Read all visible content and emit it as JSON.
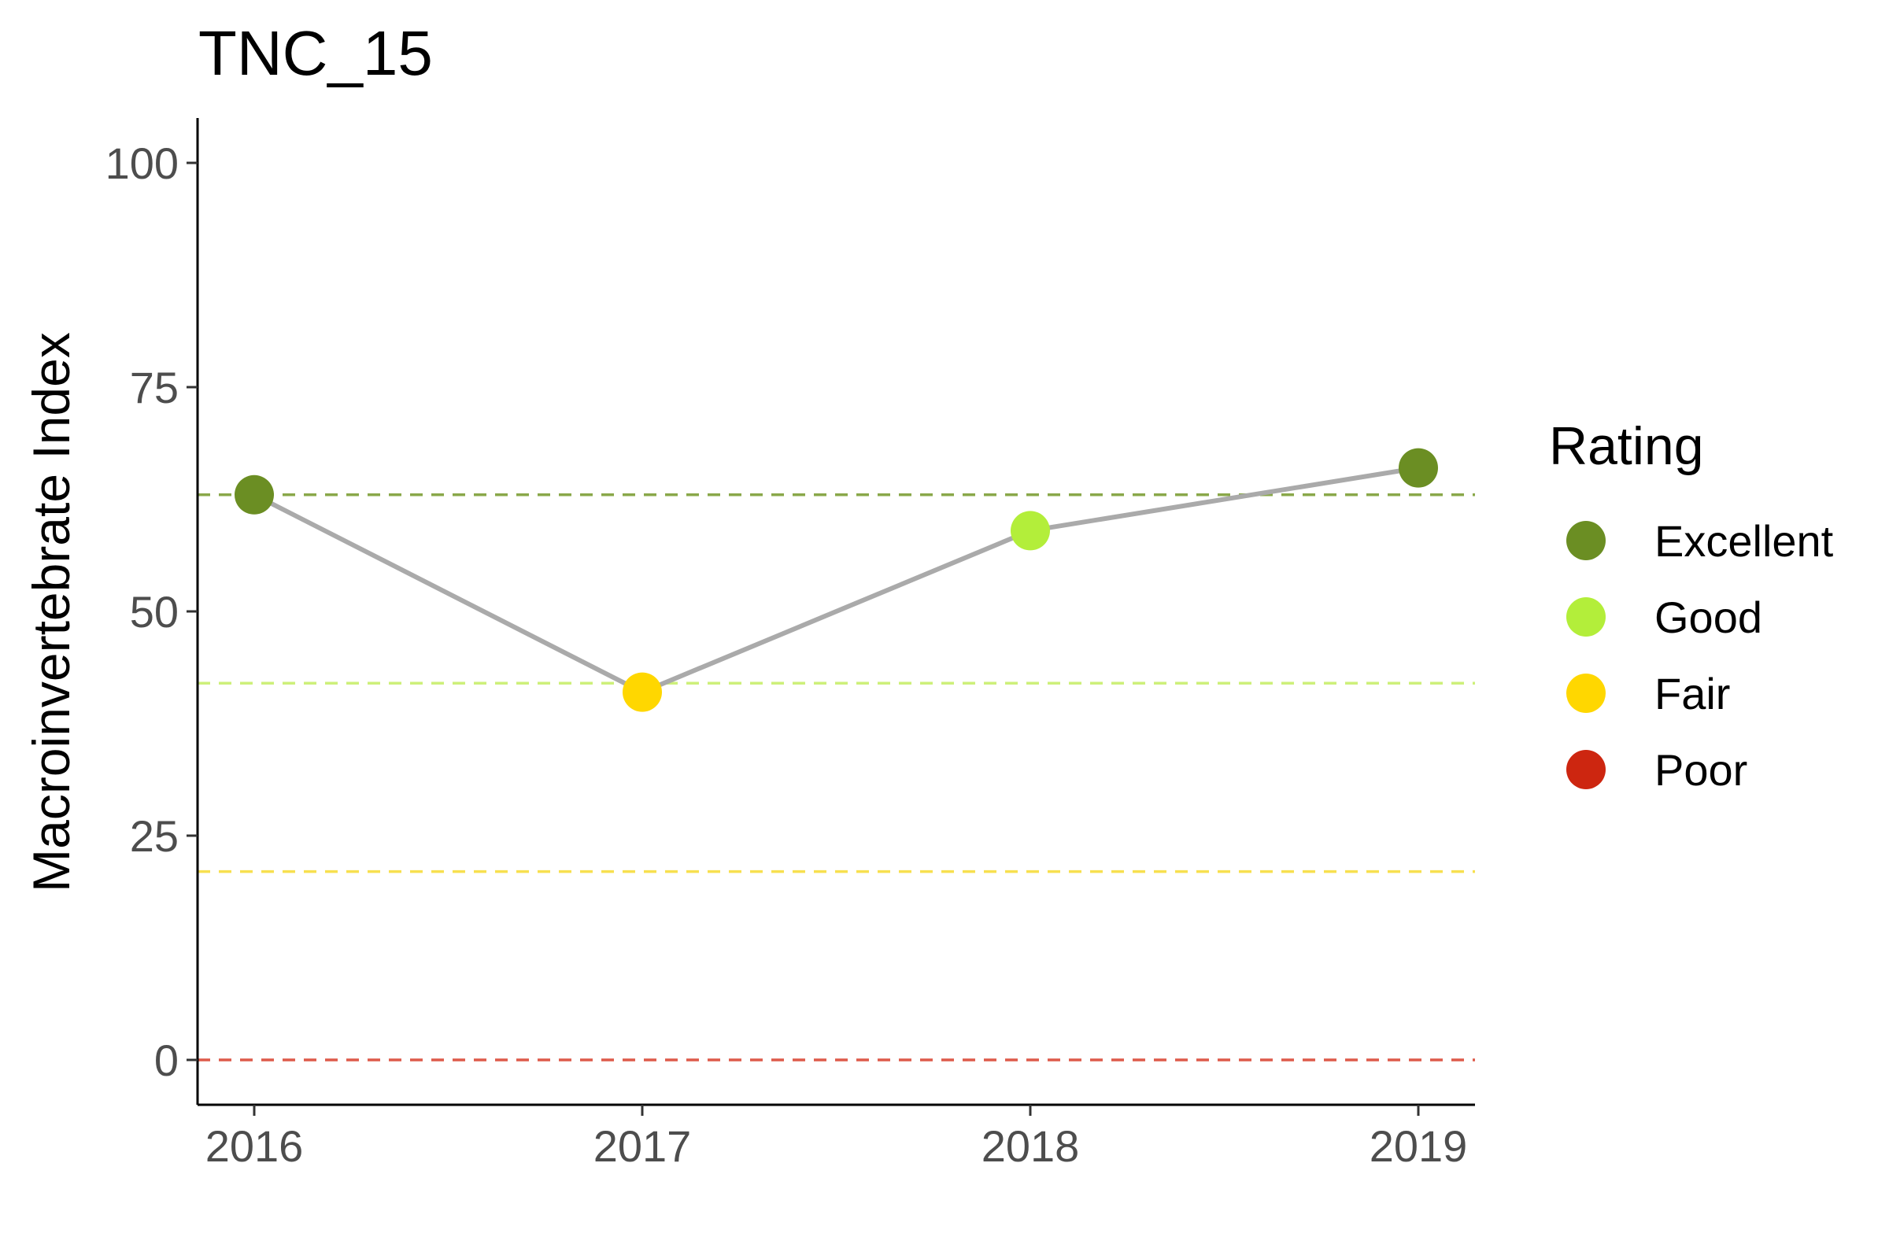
{
  "chart_data": {
    "type": "line",
    "title": "TNC_15",
    "xlabel": "",
    "ylabel": "Macroinvertebrate Index",
    "x": [
      "2016",
      "2017",
      "2018",
      "2019"
    ],
    "series": [
      {
        "values": [
          63,
          41,
          59,
          66
        ],
        "ratings": [
          "Excellent",
          "Fair",
          "Good",
          "Excellent"
        ],
        "line_color": "#aaaaaa"
      }
    ],
    "ylim": [
      -5,
      105
    ],
    "yticks": [
      0,
      25,
      50,
      75,
      100
    ],
    "ytick_labels": [
      "0",
      "25",
      "50",
      "75",
      "100"
    ],
    "reference_lines": [
      {
        "rating": "Excellent",
        "value": 63,
        "color": "#8aa84a"
      },
      {
        "rating": "Good",
        "value": 42,
        "color": "#cdf07a"
      },
      {
        "rating": "Fair",
        "value": 21,
        "color": "#f7e050"
      },
      {
        "rating": "Poor",
        "value": 0,
        "color": "#dd5a4a"
      }
    ],
    "legend": {
      "title": "Rating",
      "position": "right",
      "items": [
        {
          "label": "Excellent",
          "color": "#6b8e23"
        },
        {
          "label": "Good",
          "color": "#b3ee3a"
        },
        {
          "label": "Fair",
          "color": "#ffd700"
        },
        {
          "label": "Poor",
          "color": "#cd2610"
        }
      ]
    },
    "grid": false
  }
}
